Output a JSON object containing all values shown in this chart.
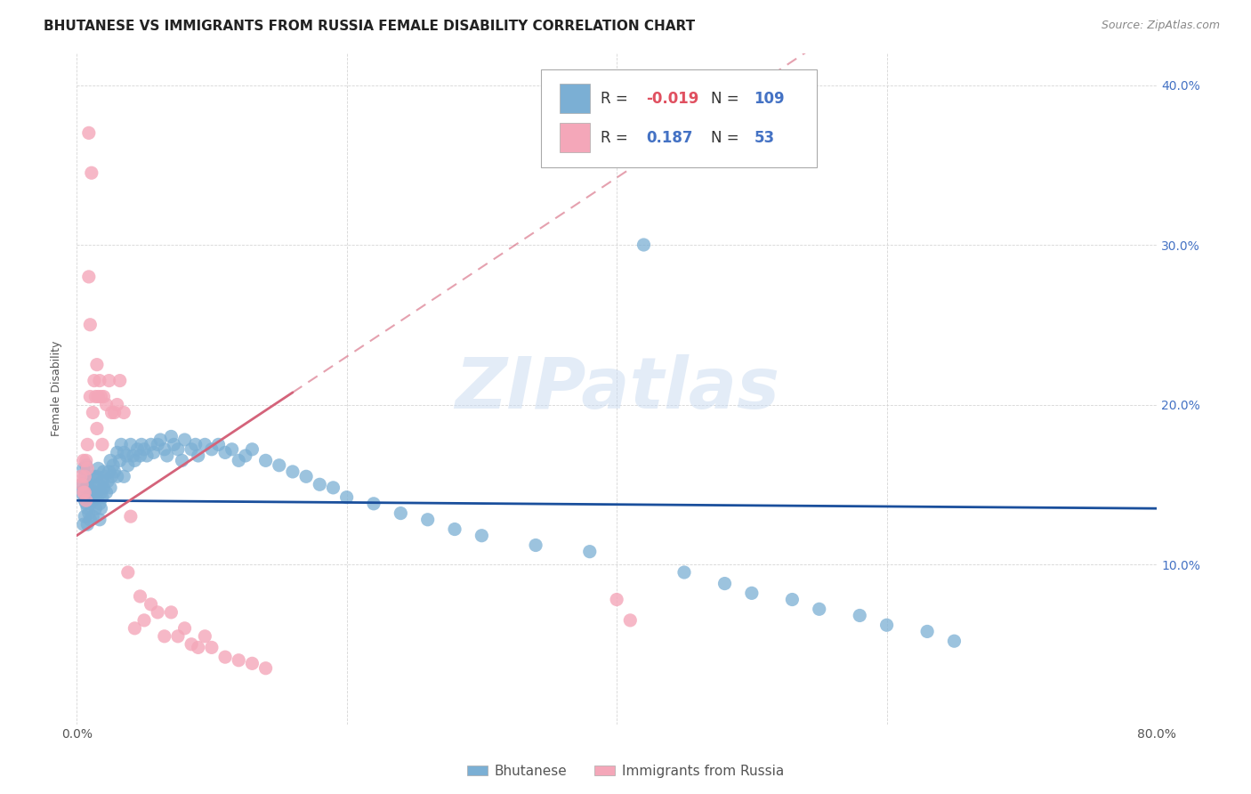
{
  "title": "BHUTANESE VS IMMIGRANTS FROM RUSSIA FEMALE DISABILITY CORRELATION CHART",
  "source": "Source: ZipAtlas.com",
  "ylabel": "Female Disability",
  "xlim": [
    0.0,
    0.8
  ],
  "ylim": [
    0.0,
    0.42
  ],
  "blue_color": "#7bafd4",
  "pink_color": "#f4a7b9",
  "blue_line_color": "#1a4f9c",
  "pink_line_color": "#d4637a",
  "legend_R_blue": "-0.019",
  "legend_N_blue": "109",
  "legend_R_pink": "0.187",
  "legend_N_pink": "53",
  "legend_label_blue": "Bhutanese",
  "legend_label_pink": "Immigrants from Russia",
  "watermark": "ZIPatlas",
  "title_fontsize": 11,
  "axis_label_fontsize": 9,
  "tick_fontsize": 10,
  "source_fontsize": 9,
  "blue_scatter_x": [
    0.003,
    0.004,
    0.005,
    0.005,
    0.006,
    0.006,
    0.006,
    0.007,
    0.007,
    0.007,
    0.008,
    0.008,
    0.008,
    0.009,
    0.009,
    0.01,
    0.01,
    0.01,
    0.011,
    0.011,
    0.012,
    0.012,
    0.013,
    0.013,
    0.014,
    0.014,
    0.015,
    0.015,
    0.016,
    0.016,
    0.017,
    0.017,
    0.018,
    0.018,
    0.019,
    0.019,
    0.02,
    0.02,
    0.021,
    0.022,
    0.023,
    0.024,
    0.025,
    0.025,
    0.026,
    0.027,
    0.028,
    0.03,
    0.03,
    0.032,
    0.033,
    0.035,
    0.035,
    0.037,
    0.038,
    0.04,
    0.042,
    0.043,
    0.045,
    0.047,
    0.048,
    0.05,
    0.052,
    0.055,
    0.057,
    0.06,
    0.062,
    0.065,
    0.067,
    0.07,
    0.072,
    0.075,
    0.078,
    0.08,
    0.085,
    0.088,
    0.09,
    0.095,
    0.1,
    0.105,
    0.11,
    0.115,
    0.12,
    0.125,
    0.13,
    0.14,
    0.15,
    0.16,
    0.17,
    0.18,
    0.19,
    0.2,
    0.22,
    0.24,
    0.26,
    0.28,
    0.3,
    0.34,
    0.38,
    0.42,
    0.45,
    0.48,
    0.5,
    0.53,
    0.55,
    0.58,
    0.6,
    0.63,
    0.65
  ],
  "blue_scatter_y": [
    0.145,
    0.15,
    0.16,
    0.125,
    0.14,
    0.13,
    0.155,
    0.138,
    0.148,
    0.162,
    0.135,
    0.125,
    0.15,
    0.142,
    0.132,
    0.148,
    0.138,
    0.128,
    0.155,
    0.145,
    0.14,
    0.13,
    0.155,
    0.145,
    0.148,
    0.135,
    0.155,
    0.145,
    0.16,
    0.15,
    0.138,
    0.128,
    0.145,
    0.135,
    0.152,
    0.142,
    0.158,
    0.148,
    0.155,
    0.145,
    0.152,
    0.158,
    0.165,
    0.148,
    0.155,
    0.162,
    0.158,
    0.17,
    0.155,
    0.165,
    0.175,
    0.17,
    0.155,
    0.168,
    0.162,
    0.175,
    0.168,
    0.165,
    0.172,
    0.168,
    0.175,
    0.172,
    0.168,
    0.175,
    0.17,
    0.175,
    0.178,
    0.172,
    0.168,
    0.18,
    0.175,
    0.172,
    0.165,
    0.178,
    0.172,
    0.175,
    0.168,
    0.175,
    0.172,
    0.175,
    0.17,
    0.172,
    0.165,
    0.168,
    0.172,
    0.165,
    0.162,
    0.158,
    0.155,
    0.15,
    0.148,
    0.142,
    0.138,
    0.132,
    0.128,
    0.122,
    0.118,
    0.112,
    0.108,
    0.3,
    0.095,
    0.088,
    0.082,
    0.078,
    0.072,
    0.068,
    0.062,
    0.058,
    0.052
  ],
  "pink_scatter_x": [
    0.003,
    0.004,
    0.005,
    0.005,
    0.006,
    0.006,
    0.007,
    0.007,
    0.008,
    0.008,
    0.009,
    0.009,
    0.01,
    0.01,
    0.011,
    0.012,
    0.013,
    0.014,
    0.015,
    0.015,
    0.016,
    0.017,
    0.018,
    0.019,
    0.02,
    0.022,
    0.024,
    0.026,
    0.028,
    0.03,
    0.032,
    0.035,
    0.038,
    0.04,
    0.043,
    0.047,
    0.05,
    0.055,
    0.06,
    0.065,
    0.07,
    0.075,
    0.08,
    0.085,
    0.09,
    0.095,
    0.1,
    0.11,
    0.12,
    0.13,
    0.14,
    0.4,
    0.41
  ],
  "pink_scatter_y": [
    0.155,
    0.15,
    0.165,
    0.145,
    0.155,
    0.145,
    0.165,
    0.14,
    0.175,
    0.16,
    0.37,
    0.28,
    0.25,
    0.205,
    0.345,
    0.195,
    0.215,
    0.205,
    0.225,
    0.185,
    0.205,
    0.215,
    0.205,
    0.175,
    0.205,
    0.2,
    0.215,
    0.195,
    0.195,
    0.2,
    0.215,
    0.195,
    0.095,
    0.13,
    0.06,
    0.08,
    0.065,
    0.075,
    0.07,
    0.055,
    0.07,
    0.055,
    0.06,
    0.05,
    0.048,
    0.055,
    0.048,
    0.042,
    0.04,
    0.038,
    0.035,
    0.078,
    0.065
  ]
}
